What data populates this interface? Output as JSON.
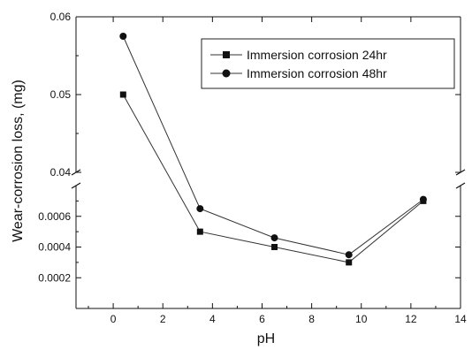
{
  "chart_data": {
    "type": "line",
    "title": "",
    "xlabel": "pH",
    "ylabel": "Wear-corrosion loss, (mg)",
    "xlim": [
      -1.5,
      14
    ],
    "x_ticks": [
      0,
      2,
      4,
      6,
      8,
      10,
      12,
      14
    ],
    "y_axis_break": true,
    "y_lower_range": [
      0,
      0.0008
    ],
    "y_lower_ticks": [
      "0.0002",
      "0.0004",
      "0.0006"
    ],
    "y_upper_range": [
      0.04,
      0.06
    ],
    "y_upper_ticks": [
      "0.04",
      "0.05",
      "0.06"
    ],
    "legend_position": "top-right",
    "grid": false,
    "series": [
      {
        "name": "Immersion corrosion 24hr",
        "marker": "square",
        "x": [
          0.4,
          3.5,
          6.5,
          9.5,
          12.5
        ],
        "y": [
          0.05,
          0.0005,
          0.0004,
          0.0003,
          0.0007
        ]
      },
      {
        "name": "Immersion corrosion 48hr",
        "marker": "circle",
        "x": [
          0.4,
          3.5,
          6.5,
          9.5,
          12.5
        ],
        "y": [
          0.0575,
          0.00065,
          0.00046,
          0.00035,
          0.00071
        ]
      }
    ]
  }
}
